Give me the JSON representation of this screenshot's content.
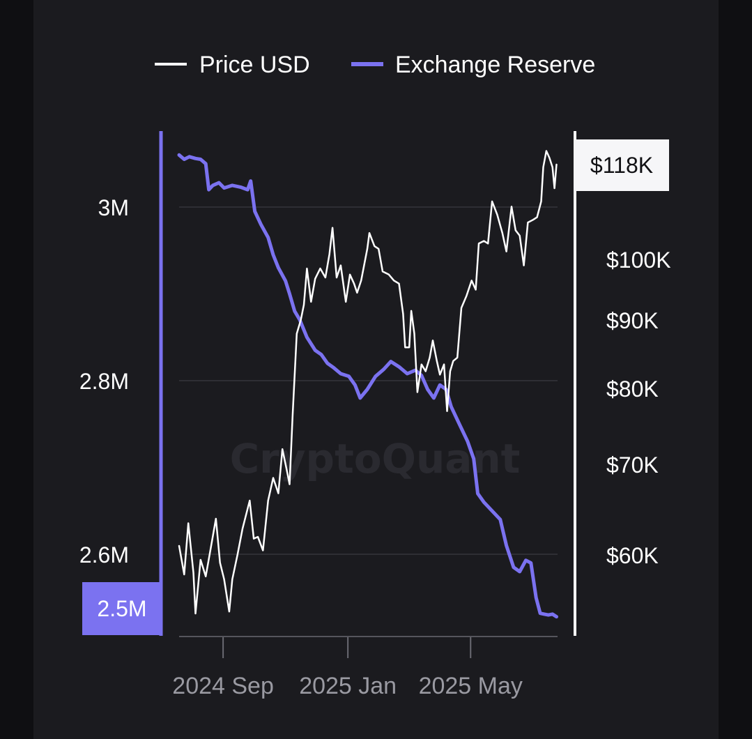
{
  "chart_data": {
    "type": "line",
    "watermark": "CryptoQuant",
    "colors": {
      "price": "#ffffff",
      "reserve": "#7b72f0",
      "background": "#1b1b1f",
      "grid": "#2e2e34",
      "x_tick_labels": "#9a9aa2"
    },
    "x_axis": {
      "start": "2024-07-20",
      "end": "2025-07-25",
      "tick_labels": [
        "2024 Sep",
        "2025 Jan",
        "2025 May"
      ],
      "tick_dates": [
        "2024-09-01",
        "2025-01-01",
        "2025-05-01"
      ]
    },
    "left_axis": {
      "series": "Exchange Reserve",
      "tick_labels": [
        "3M",
        "2.8M",
        "2.6M"
      ],
      "tick_values": [
        3000000,
        2800000,
        2600000
      ],
      "current_value_label": "2.5M",
      "current_value": 2500000
    },
    "right_axis": {
      "series": "Price USD",
      "tick_labels": [
        "$100K",
        "$90K",
        "$80K",
        "$70K",
        "$60K"
      ],
      "tick_values": [
        100000,
        90000,
        80000,
        70000,
        60000
      ],
      "current_value_label": "$118K",
      "current_value": 118000
    },
    "series": [
      {
        "name": "Price USD",
        "axis": "right",
        "color": "#ffffff",
        "points": [
          [
            "2024-07-20",
            61000
          ],
          [
            "2024-07-25",
            58000
          ],
          [
            "2024-07-29",
            63500
          ],
          [
            "2024-08-03",
            58200
          ],
          [
            "2024-08-05",
            54000
          ],
          [
            "2024-08-10",
            59500
          ],
          [
            "2024-08-15",
            57800
          ],
          [
            "2024-08-20",
            60800
          ],
          [
            "2024-08-25",
            64000
          ],
          [
            "2024-08-29",
            59200
          ],
          [
            "2024-09-02",
            57500
          ],
          [
            "2024-09-07",
            54200
          ],
          [
            "2024-09-10",
            57500
          ],
          [
            "2024-09-15",
            60000
          ],
          [
            "2024-09-20",
            62900
          ],
          [
            "2024-09-27",
            66000
          ],
          [
            "2024-10-01",
            61800
          ],
          [
            "2024-10-05",
            62000
          ],
          [
            "2024-10-10",
            60500
          ],
          [
            "2024-10-15",
            66000
          ],
          [
            "2024-10-20",
            68500
          ],
          [
            "2024-10-25",
            66800
          ],
          [
            "2024-10-29",
            72000
          ],
          [
            "2024-11-02",
            69500
          ],
          [
            "2024-11-05",
            67800
          ],
          [
            "2024-11-08",
            76500
          ],
          [
            "2024-11-12",
            88000
          ],
          [
            "2024-11-16",
            90000
          ],
          [
            "2024-11-19",
            92500
          ],
          [
            "2024-11-22",
            98500
          ],
          [
            "2024-11-26",
            93000
          ],
          [
            "2024-11-30",
            96800
          ],
          [
            "2024-12-05",
            98500
          ],
          [
            "2024-12-10",
            97000
          ],
          [
            "2024-12-14",
            101000
          ],
          [
            "2024-12-17",
            106000
          ],
          [
            "2024-12-21",
            97000
          ],
          [
            "2024-12-25",
            99000
          ],
          [
            "2024-12-30",
            93000
          ],
          [
            "2025-01-03",
            97500
          ],
          [
            "2025-01-07",
            96000
          ],
          [
            "2025-01-10",
            94500
          ],
          [
            "2025-01-14",
            96500
          ],
          [
            "2025-01-20",
            102000
          ],
          [
            "2025-01-22",
            105000
          ],
          [
            "2025-01-27",
            102500
          ],
          [
            "2025-01-31",
            102000
          ],
          [
            "2025-02-04",
            98000
          ],
          [
            "2025-02-10",
            97500
          ],
          [
            "2025-02-15",
            96500
          ],
          [
            "2025-02-20",
            96000
          ],
          [
            "2025-02-24",
            91000
          ],
          [
            "2025-02-26",
            86000
          ],
          [
            "2025-03-02",
            86000
          ],
          [
            "2025-03-04",
            91500
          ],
          [
            "2025-03-07",
            88000
          ],
          [
            "2025-03-10",
            79500
          ],
          [
            "2025-03-14",
            83500
          ],
          [
            "2025-03-18",
            82500
          ],
          [
            "2025-03-22",
            84500
          ],
          [
            "2025-03-25",
            87000
          ],
          [
            "2025-03-29",
            84000
          ],
          [
            "2025-04-01",
            82000
          ],
          [
            "2025-04-05",
            83500
          ],
          [
            "2025-04-08",
            77000
          ],
          [
            "2025-04-11",
            82500
          ],
          [
            "2025-04-14",
            84000
          ],
          [
            "2025-04-18",
            84500
          ],
          [
            "2025-04-22",
            92000
          ],
          [
            "2025-04-27",
            94000
          ],
          [
            "2025-05-02",
            96500
          ],
          [
            "2025-05-06",
            95000
          ],
          [
            "2025-05-09",
            103000
          ],
          [
            "2025-05-14",
            103500
          ],
          [
            "2025-05-18",
            103000
          ],
          [
            "2025-05-22",
            111000
          ],
          [
            "2025-05-27",
            108500
          ],
          [
            "2025-06-01",
            105000
          ],
          [
            "2025-06-05",
            101500
          ],
          [
            "2025-06-10",
            110000
          ],
          [
            "2025-06-14",
            105500
          ],
          [
            "2025-06-18",
            104500
          ],
          [
            "2025-06-22",
            99000
          ],
          [
            "2025-06-26",
            107000
          ],
          [
            "2025-07-01",
            107500
          ],
          [
            "2025-07-05",
            108000
          ],
          [
            "2025-07-09",
            111000
          ],
          [
            "2025-07-11",
            117500
          ],
          [
            "2025-07-14",
            121000
          ],
          [
            "2025-07-17",
            119500
          ],
          [
            "2025-07-20",
            117500
          ],
          [
            "2025-07-22",
            113500
          ],
          [
            "2025-07-24",
            118000
          ]
        ]
      },
      {
        "name": "Exchange Reserve",
        "axis": "left",
        "color": "#7b72f0",
        "points": [
          [
            "2024-07-20",
            3060000
          ],
          [
            "2024-07-25",
            3055000
          ],
          [
            "2024-07-30",
            3058000
          ],
          [
            "2024-08-05",
            3056000
          ],
          [
            "2024-08-10",
            3055000
          ],
          [
            "2024-08-15",
            3050000
          ],
          [
            "2024-08-18",
            3020000
          ],
          [
            "2024-08-22",
            3025000
          ],
          [
            "2024-08-28",
            3028000
          ],
          [
            "2024-09-02",
            3022000
          ],
          [
            "2024-09-10",
            3025000
          ],
          [
            "2024-09-18",
            3023000
          ],
          [
            "2024-09-25",
            3020000
          ],
          [
            "2024-09-28",
            3030000
          ],
          [
            "2024-10-02",
            2995000
          ],
          [
            "2024-10-08",
            2980000
          ],
          [
            "2024-10-15",
            2965000
          ],
          [
            "2024-10-20",
            2945000
          ],
          [
            "2024-10-25",
            2930000
          ],
          [
            "2024-11-01",
            2915000
          ],
          [
            "2024-11-05",
            2900000
          ],
          [
            "2024-11-10",
            2880000
          ],
          [
            "2024-11-15",
            2870000
          ],
          [
            "2024-11-22",
            2850000
          ],
          [
            "2024-11-30",
            2835000
          ],
          [
            "2024-12-06",
            2830000
          ],
          [
            "2024-12-12",
            2820000
          ],
          [
            "2024-12-18",
            2815000
          ],
          [
            "2024-12-25",
            2808000
          ],
          [
            "2025-01-02",
            2805000
          ],
          [
            "2025-01-08",
            2795000
          ],
          [
            "2025-01-13",
            2780000
          ],
          [
            "2025-01-20",
            2790000
          ],
          [
            "2025-01-28",
            2805000
          ],
          [
            "2025-02-05",
            2813000
          ],
          [
            "2025-02-12",
            2822000
          ],
          [
            "2025-02-20",
            2816000
          ],
          [
            "2025-02-28",
            2808000
          ],
          [
            "2025-03-08",
            2812000
          ],
          [
            "2025-03-14",
            2806000
          ],
          [
            "2025-03-20",
            2790000
          ],
          [
            "2025-03-26",
            2780000
          ],
          [
            "2025-04-01",
            2795000
          ],
          [
            "2025-04-07",
            2790000
          ],
          [
            "2025-04-12",
            2770000
          ],
          [
            "2025-04-20",
            2750000
          ],
          [
            "2025-04-28",
            2730000
          ],
          [
            "2025-05-04",
            2710000
          ],
          [
            "2025-05-08",
            2670000
          ],
          [
            "2025-05-14",
            2660000
          ],
          [
            "2025-05-22",
            2650000
          ],
          [
            "2025-05-30",
            2640000
          ],
          [
            "2025-06-05",
            2610000
          ],
          [
            "2025-06-12",
            2585000
          ],
          [
            "2025-06-18",
            2580000
          ],
          [
            "2025-06-24",
            2593000
          ],
          [
            "2025-06-29",
            2590000
          ],
          [
            "2025-07-04",
            2550000
          ],
          [
            "2025-07-08",
            2532000
          ],
          [
            "2025-07-12",
            2531000
          ],
          [
            "2025-07-16",
            2530000
          ],
          [
            "2025-07-20",
            2531000
          ],
          [
            "2025-07-24",
            2528000
          ]
        ]
      }
    ]
  }
}
